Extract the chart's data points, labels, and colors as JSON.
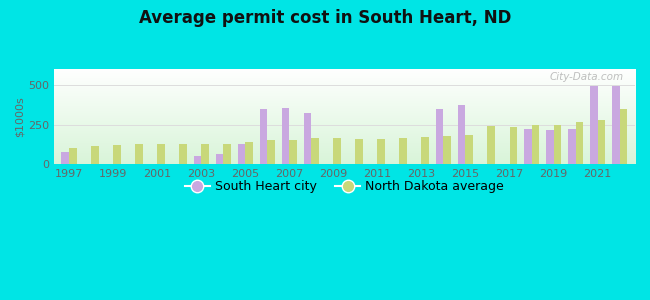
{
  "title": "Average permit cost in South Heart, ND",
  "ylabel": "$1000s",
  "background_outer": "#00e5e5",
  "years": [
    1997,
    1998,
    1999,
    2000,
    2001,
    2002,
    2003,
    2004,
    2005,
    2006,
    2007,
    2008,
    2009,
    2010,
    2011,
    2012,
    2013,
    2014,
    2015,
    2016,
    2017,
    2018,
    2019,
    2020,
    2021,
    2022
  ],
  "south_heart": [
    75,
    0,
    0,
    0,
    0,
    0,
    55,
    65,
    130,
    350,
    355,
    320,
    0,
    0,
    0,
    0,
    0,
    345,
    375,
    0,
    0,
    220,
    215,
    220,
    490,
    490
  ],
  "nd_average": [
    105,
    115,
    120,
    125,
    130,
    125,
    130,
    130,
    140,
    155,
    155,
    165,
    165,
    160,
    160,
    165,
    170,
    180,
    185,
    240,
    235,
    245,
    250,
    265,
    280,
    345
  ],
  "city_color": "#c9a8e0",
  "nd_color": "#c8d87a",
  "ylim": [
    0,
    600
  ],
  "yticks": [
    0,
    250,
    500
  ],
  "bar_width": 0.35,
  "legend_city": "South Heart city",
  "legend_nd": "North Dakota average",
  "watermark": "City-Data.com"
}
